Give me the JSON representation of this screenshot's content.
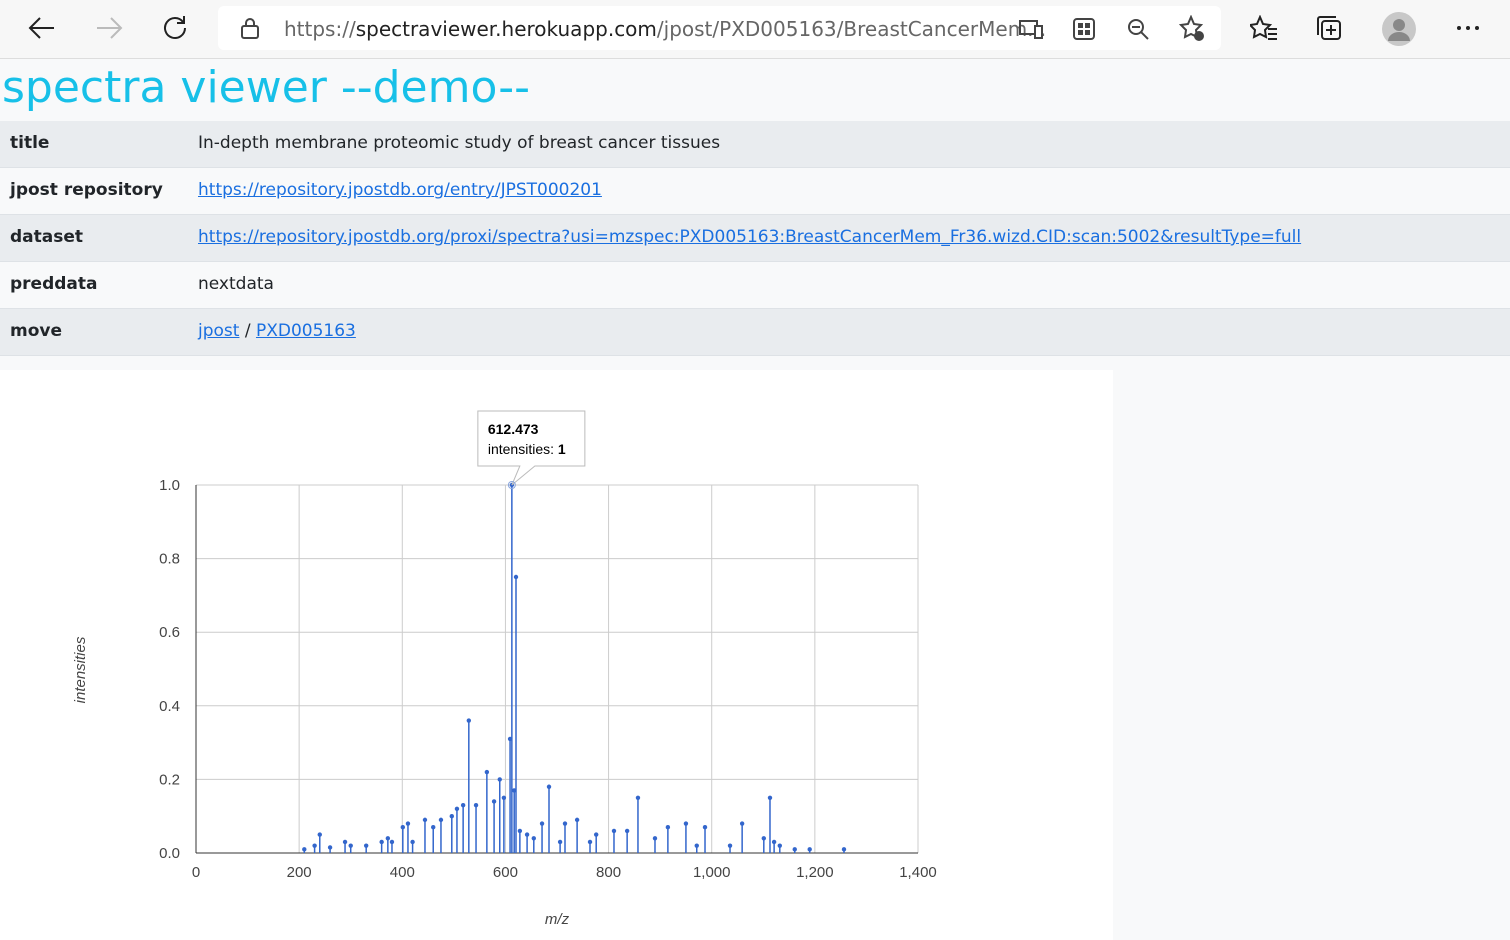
{
  "browser": {
    "url_scheme": "https://",
    "url_host": "spectraviewer.herokuapp.com",
    "url_path": "/jpost/PXD005163/BreastCancerMem..."
  },
  "header": {
    "title": "spectra viewer --demo--"
  },
  "table": {
    "rows": [
      [
        "title",
        "In-depth membrane proteomic study of breast cancer tissues"
      ],
      [
        "jpost repository",
        "https://repository.jpostdb.org/entry/JPST000201"
      ],
      [
        "dataset",
        "https://repository.jpostdb.org/proxi/spectra?usi=mzspec:PXD005163:BreastCancerMem_Fr36.wizd.CID:scan:5002&resultType=full"
      ],
      [
        "preddata",
        "nextdata"
      ],
      [
        "move",
        "jpost",
        "/",
        "PXD005163"
      ]
    ]
  },
  "chart_data": {
    "type": "stem",
    "x_label": "m/z",
    "y_label": "intensities",
    "color": "#3366cc",
    "grid": true,
    "xlim": [
      0,
      1400
    ],
    "xticks": [
      0,
      200,
      400,
      600,
      800,
      {
        "value": 1000,
        "label": "1,000"
      },
      {
        "value": 1200,
        "label": "1,200"
      },
      {
        "value": 1400,
        "label": "1,400"
      }
    ],
    "ylim": [
      0,
      1
    ],
    "yticks": [
      {
        "value": 0,
        "label": "0.0"
      },
      0.2,
      0.4,
      0.6,
      0.8,
      {
        "value": 1,
        "label": "1.0"
      }
    ],
    "x": [
      210,
      230,
      240,
      260,
      289,
      300,
      330,
      360,
      372,
      380,
      401,
      411,
      420,
      444,
      460,
      475,
      496,
      506,
      518,
      529,
      543,
      564,
      578,
      589,
      597,
      609,
      612.473,
      617,
      620.5,
      628,
      642,
      655,
      671,
      684.5,
      706,
      715.5,
      739,
      764,
      776,
      810.5,
      836,
      857,
      890,
      915,
      950,
      971,
      987,
      1035.5,
      1059,
      1101,
      1113,
      1121,
      1132,
      1161,
      1190,
      1256.5
    ],
    "values": [
      0.01,
      0.02,
      0.05,
      0.015,
      0.03,
      0.02,
      0.02,
      0.03,
      0.04,
      0.03,
      0.07,
      0.08,
      0.03,
      0.09,
      0.07,
      0.09,
      0.1,
      0.12,
      0.13,
      0.36,
      0.13,
      0.22,
      0.14,
      0.2,
      0.15,
      0.31,
      1,
      0.17,
      0.75,
      0.06,
      0.05,
      0.04,
      0.08,
      0.18,
      0.03,
      0.08,
      0.09,
      0.03,
      0.05,
      0.06,
      0.06,
      0.15,
      0.04,
      0.07,
      0.08,
      0.02,
      0.07,
      0.02,
      0.08,
      0.04,
      0.15,
      0.03,
      0.02,
      0.01,
      0.01,
      0.01
    ],
    "tooltip": {
      "x": 612.473,
      "label": "intensities:",
      "value": 1
    }
  }
}
